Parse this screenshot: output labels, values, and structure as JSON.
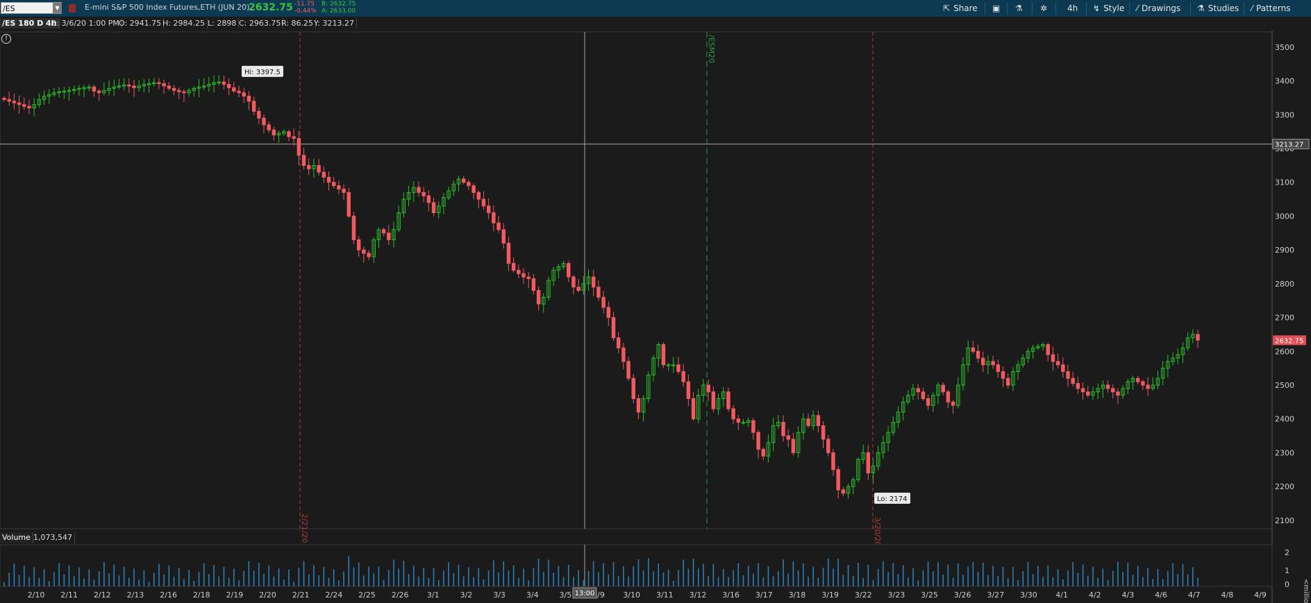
{
  "toolbar": {
    "symbol": "/ES",
    "title": "E-mini S&P 500 Index Futures,ETH (JUN 20)",
    "last": "2632.75",
    "net_change": "-11.75",
    "pct_change": "-0.44%",
    "bid": "B: 2632.75",
    "ask": "A: 2633.00",
    "share_label": "Share",
    "timeframe_label": "4h",
    "style_label": "Style",
    "drawings_label": "Drawings",
    "studies_label": "Studies",
    "patterns_label": "Patterns"
  },
  "info": {
    "symbol_period": "/ES 180 D 4h",
    "date": "D: 3/6/20 1:00 PM",
    "open": "O: 2941.75",
    "high": "H: 2984.25",
    "low": "L: 2898",
    "close": "C: 2963.75",
    "range": "R: 86.25",
    "y": "Y: 3213.27"
  },
  "volume": {
    "label": "Volume",
    "value": "1,073,547"
  },
  "colors": {
    "up": "#29c229",
    "down": "#f05b62",
    "volume": "#2c7fb8",
    "background": "#1b1b1b"
  },
  "chart_data": {
    "type": "candlestick",
    "price_axis": {
      "ticks": [
        3500,
        3400,
        3300,
        3200,
        3100,
        3000,
        2900,
        2800,
        2700,
        2600,
        2500,
        2400,
        2300,
        2200,
        2100
      ],
      "ylim": [
        2075,
        3545
      ]
    },
    "volume_axis": {
      "ticks": [
        "2",
        "1",
        "0"
      ],
      "unit": "<millions>"
    },
    "x_ticks": [
      "2/10",
      "2/11",
      "2/12",
      "2/13",
      "2/16",
      "2/18",
      "2/19",
      "2/20",
      "2/21",
      "2/24",
      "2/25",
      "2/26",
      "3/1",
      "3/2",
      "3/3",
      "3/4",
      "3/5",
      "3/9",
      "3/10",
      "3/11",
      "3/12",
      "3/16",
      "3/17",
      "3/18",
      "3/19",
      "3/22",
      "3/23",
      "3/25",
      "3/26",
      "3/27",
      "3/30",
      "4/1",
      "4/2",
      "4/3",
      "4/6",
      "4/7",
      "4/8",
      "4/9"
    ],
    "cursor_x_label": "13:00",
    "cursor_y_label": "3213.27",
    "last_price_label": "2632.75",
    "high_label": "Hi: 3397.5",
    "low_label": "Lo: 2174",
    "event_lines": [
      {
        "label": "2/21/20",
        "color": "#b23b3b"
      },
      {
        "label": "/ESM20",
        "color": "#2a9a4a"
      },
      {
        "label": "3/20/20",
        "color": "#b23b3b"
      }
    ],
    "price_path": [
      [
        3345,
        3340,
        3335,
        3330,
        3325,
        3320,
        3330,
        3345,
        3355,
        3360,
        3365,
        3368,
        3370,
        3372,
        3375,
        3378,
        3380,
        3382,
        3370,
        3365,
        3372,
        3378,
        3382,
        3385,
        3388,
        3385,
        3380,
        3385,
        3390,
        3392,
        3395,
        3392,
        3385,
        3378,
        3372,
        3368,
        3365,
        3372,
        3378,
        3382,
        3385,
        3390,
        3395,
        3397,
        3390,
        3380,
        3370,
        3365,
        3355,
        3340
      ],
      [
        3310,
        3290,
        3270,
        3255,
        3240,
        3245,
        3250,
        3235,
        3230,
        3180,
        3150,
        3140,
        3150,
        3130,
        3115,
        3100,
        3090,
        3080,
        3070,
        3000,
        2930,
        2900,
        2890,
        2880,
        2930,
        2960,
        2950,
        2930,
        2960,
        3010,
        3050,
        3070,
        3085,
        3070,
        3060,
        3040,
        3010,
        3030,
        3055,
        3075,
        3095,
        3110,
        3100,
        3090,
        3070,
        3050,
        3030,
        3010,
        2980,
        2960
      ],
      [
        2920,
        2860,
        2840,
        2830,
        2820,
        2815,
        2780,
        2740,
        2760,
        2810,
        2840,
        2850,
        2860,
        2820,
        2790,
        2780,
        2800,
        2820,
        2790,
        2760,
        2730,
        2700,
        2640,
        2610,
        2570,
        2520,
        2460,
        2420,
        2460,
        2530,
        2580,
        2620,
        2560,
        2560,
        2560,
        2540,
        2510,
        2460,
        2400,
        2470,
        2500,
        2480,
        2430,
        2460,
        2480,
        2430,
        2400,
        2390,
        2390,
        2395
      ],
      [
        2360,
        2310,
        2290,
        2330,
        2380,
        2390,
        2350,
        2340,
        2300,
        2360,
        2400,
        2380,
        2410,
        2380,
        2340,
        2300,
        2250,
        2190,
        2180,
        2200,
        2220,
        2280,
        2300,
        2240,
        2260,
        2300,
        2330,
        2360,
        2390,
        2420,
        2450,
        2470,
        2490,
        2480,
        2460,
        2440,
        2470,
        2500,
        2480,
        2450,
        2440,
        2500,
        2560,
        2610,
        2600,
        2580,
        2560,
        2570,
        2560,
        2540
      ],
      [
        2520,
        2500,
        2540,
        2560,
        2580,
        2600,
        2610,
        2615,
        2620,
        2590,
        2570,
        2560,
        2540,
        2520,
        2505,
        2490,
        2480,
        2470,
        2480,
        2490,
        2500,
        2490,
        2480,
        2470,
        2490,
        2510,
        2520,
        2510,
        2500,
        2490,
        2500,
        2520,
        2550,
        2570,
        2580,
        2590,
        2610,
        2640,
        2650,
        2633
      ]
    ]
  }
}
